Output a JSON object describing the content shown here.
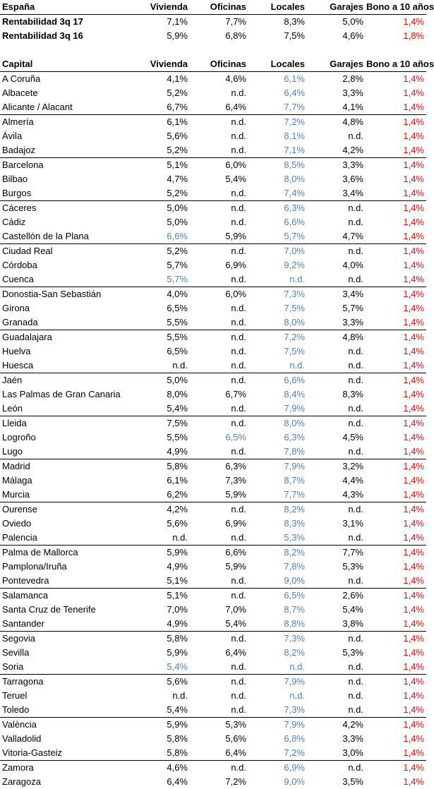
{
  "summary": {
    "headers": [
      "España",
      "Vivienda",
      "Oficinas",
      "Locales",
      "Garajes",
      "Bono a 10 años"
    ],
    "rows": [
      {
        "label": "Rentabilidad 3q 17",
        "values": [
          "7,1%",
          "7,7%",
          "8,3%",
          "5,0%",
          "1,4%"
        ]
      },
      {
        "label": "Rentabilidad 3q 16",
        "values": [
          "5,9%",
          "6,8%",
          "7,5%",
          "4,6%",
          "1,8%"
        ]
      }
    ]
  },
  "capitals": {
    "headers": [
      "Capital",
      "Vivienda",
      "Oficinas",
      "Locales",
      "Garajes",
      "Bono a 10 años"
    ],
    "rows": [
      [
        "A Coruña",
        "4,1%",
        "4,6%",
        "6,1%",
        "2,8%",
        "1,4%"
      ],
      [
        "Albacete",
        "5,2%",
        "n.d.",
        "6,4%",
        "3,3%",
        "1,4%"
      ],
      [
        "Alicante / Alacant",
        "6,7%",
        "6,4%",
        "7,7%",
        "4,1%",
        "1,4%"
      ],
      [
        "Almería",
        "6,1%",
        "n.d.",
        "7,2%",
        "4,8%",
        "1,4%"
      ],
      [
        "Ávila",
        "5,6%",
        "n.d.",
        "8,1%",
        "n.d.",
        "1,4%"
      ],
      [
        "Badajoz",
        "5,2%",
        "n.d.",
        "7,1%",
        "4,2%",
        "1,4%"
      ],
      [
        "Barcelona",
        "5,1%",
        "6,0%",
        "8,5%",
        "3,3%",
        "1,4%"
      ],
      [
        "Bilbao",
        "4,7%",
        "5,4%",
        "8,0%",
        "3,6%",
        "1,4%"
      ],
      [
        "Burgos",
        "5,2%",
        "n.d.",
        "7,4%",
        "3,4%",
        "1,4%"
      ],
      [
        "Cáceres",
        "5,0%",
        "n.d.",
        "6,3%",
        "n.d.",
        "1,4%"
      ],
      [
        "Cádiz",
        "5,0%",
        "n.d.",
        "6,6%",
        "n.d.",
        "1,4%"
      ],
      [
        "Castellón de la Plana",
        "6,6%",
        "5,9%",
        "5,7%",
        "4,7%",
        "1,4%"
      ],
      [
        "Ciudad Real",
        "5,2%",
        "n.d.",
        "7,0%",
        "n.d.",
        "1,4%"
      ],
      [
        "Córdoba",
        "5,7%",
        "6,9%",
        "9,2%",
        "4,0%",
        "1,4%"
      ],
      [
        "Cuenca",
        "5,7%",
        "n.d.",
        "n.d.",
        "n.d.",
        "1,4%"
      ],
      [
        "Donostia-San Sebastián",
        "4,0%",
        "6,0%",
        "7,3%",
        "3,4%",
        "1,4%"
      ],
      [
        "Girona",
        "6,5%",
        "n.d.",
        "7,5%",
        "5,7%",
        "1,4%"
      ],
      [
        "Granada",
        "5,5%",
        "n.d.",
        "8,0%",
        "3,3%",
        "1,4%"
      ],
      [
        "Guadalajara",
        "5,5%",
        "n.d.",
        "7,2%",
        "4,8%",
        "1,4%"
      ],
      [
        "Huelva",
        "6,5%",
        "n.d.",
        "7,5%",
        "n.d.",
        "1,4%"
      ],
      [
        "Huesca",
        "n.d.",
        "n.d.",
        "n.d.",
        "n.d.",
        "1,4%"
      ],
      [
        "Jaén",
        "5,0%",
        "n.d.",
        "6,6%",
        "n.d.",
        "1,4%"
      ],
      [
        "Las Palmas de Gran Canaria",
        "8,0%",
        "6,7%",
        "8,4%",
        "8,3%",
        "1,4%"
      ],
      [
        "León",
        "5,4%",
        "n.d.",
        "7,9%",
        "n.d.",
        "1,4%"
      ],
      [
        "Lleida",
        "7,5%",
        "n.d.",
        "8,0%",
        "n.d.",
        "1,4%"
      ],
      [
        "Logroño",
        "5,5%",
        "6,5%",
        "6,3%",
        "4,5%",
        "1,4%"
      ],
      [
        "Lugo",
        "4,9%",
        "n.d.",
        "7,8%",
        "n.d.",
        "1,4%"
      ],
      [
        "Madrid",
        "5,8%",
        "6,3%",
        "7,9%",
        "3,2%",
        "1,4%"
      ],
      [
        "Málaga",
        "6,1%",
        "7,3%",
        "8,7%",
        "4,4%",
        "1,4%"
      ],
      [
        "Murcia",
        "6,2%",
        "5,9%",
        "7,7%",
        "4,3%",
        "1,4%"
      ],
      [
        "Ourense",
        "4,2%",
        "n.d.",
        "8,2%",
        "n.d.",
        "1,4%"
      ],
      [
        "Oviedo",
        "5,6%",
        "6,9%",
        "8,3%",
        "3,1%",
        "1,4%"
      ],
      [
        "Palencia",
        "n.d.",
        "n.d.",
        "5,3%",
        "n.d.",
        "1,4%"
      ],
      [
        "Palma de Mallorca",
        "5,9%",
        "6,6%",
        "8,2%",
        "7,7%",
        "1,4%"
      ],
      [
        "Pamplona/Iruña",
        "4,9%",
        "5,9%",
        "7,8%",
        "5,3%",
        "1,4%"
      ],
      [
        "Pontevedra",
        "5,1%",
        "n.d.",
        "9,0%",
        "n.d.",
        "1,4%"
      ],
      [
        "Salamanca",
        "5,1%",
        "n.d.",
        "6,5%",
        "2,6%",
        "1,4%"
      ],
      [
        "Santa Cruz de Tenerife",
        "7,0%",
        "7,0%",
        "8,7%",
        "5,4%",
        "1,4%"
      ],
      [
        "Santander",
        "4,9%",
        "5,4%",
        "8,8%",
        "3,8%",
        "1,4%"
      ],
      [
        "Segovia",
        "5,8%",
        "n.d.",
        "7,3%",
        "n.d.",
        "1,4%"
      ],
      [
        "Sevilla",
        "5,9%",
        "6,4%",
        "8,2%",
        "5,3%",
        "1,4%"
      ],
      [
        "Soria",
        "5,4%",
        "n.d.",
        "n.d.",
        "n.d.",
        "1,4%"
      ],
      [
        "Tarragona",
        "5,6%",
        "n.d.",
        "7,9%",
        "n.d.",
        "1,4%"
      ],
      [
        "Teruel",
        "n.d.",
        "n.d.",
        "n.d.",
        "n.d.",
        "1,4%"
      ],
      [
        "Toledo",
        "5,4%",
        "n.d.",
        "7,3%",
        "n.d.",
        "1,4%"
      ],
      [
        "València",
        "5,9%",
        "5,3%",
        "7,9%",
        "4,2%",
        "1,4%"
      ],
      [
        "Valladolid",
        "5,8%",
        "5,6%",
        "6,8%",
        "3,3%",
        "1,4%"
      ],
      [
        "Vitoria-Gasteiz",
        "5,8%",
        "6,4%",
        "7,2%",
        "3,0%",
        "1,4%"
      ],
      [
        "Zamora",
        "4,6%",
        "n.d.",
        "6,9%",
        "n.d.",
        "1,4%"
      ],
      [
        "Zaragoza",
        "6,4%",
        "7,2%",
        "9,0%",
        "3,5%",
        "1,4%"
      ]
    ],
    "blue_cells": [
      [
        11,
        1
      ],
      [
        14,
        1
      ],
      [
        25,
        2
      ],
      [
        41,
        1
      ]
    ],
    "group_end_rows": [
      2,
      5,
      8,
      11,
      14,
      17,
      20,
      23,
      26,
      29,
      32,
      35,
      38,
      41,
      44,
      47
    ]
  },
  "colors": {
    "text": "#000000",
    "locales_column": "#4f81bd",
    "bond_column": "#ff0000",
    "summary_highlight": "#ff0000"
  }
}
